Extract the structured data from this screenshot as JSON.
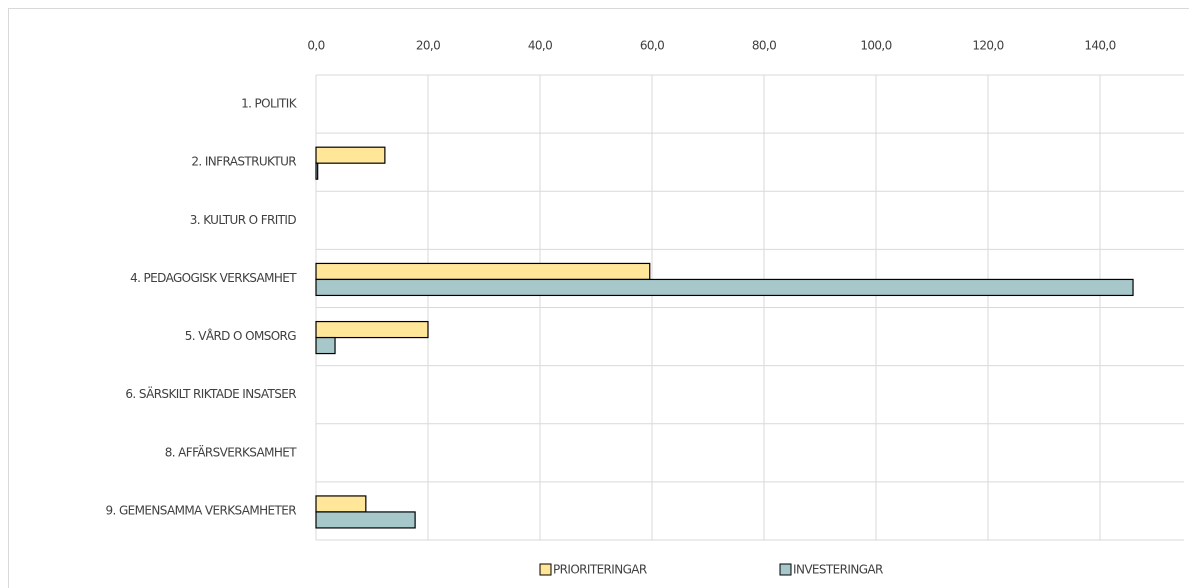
{
  "chart_data": {
    "type": "bar",
    "orientation": "horizontal",
    "categories": [
      "1. POLITIK",
      "2. INFRASTRUKTUR",
      "3. KULTUR O FRITID",
      "4. PEDAGOGISK VERKSAMHET",
      "5. VÅRD O OMSORG",
      "6. SÄRSKILT RIKTADE INSATSER",
      "8. AFFÄRSVERKSAMHET",
      "9. GEMENSAMMA VERKSAMHETER"
    ],
    "series": [
      {
        "name": "PRIORITERINGAR",
        "color": "#ffe699",
        "values": [
          0,
          12.3,
          0,
          59.6,
          20.0,
          0,
          0,
          8.9
        ]
      },
      {
        "name": "INVESTERINGAR",
        "color": "#a7c8cb",
        "values": [
          0,
          0.3,
          0,
          145.9,
          3.4,
          0,
          0,
          17.7
        ]
      }
    ],
    "xlim": [
      0,
      155
    ],
    "xticks": [
      {
        "value": 0,
        "label": "0,0"
      },
      {
        "value": 20,
        "label": "20,0"
      },
      {
        "value": 40,
        "label": "40,0"
      },
      {
        "value": 60,
        "label": "60,0"
      },
      {
        "value": 80,
        "label": "80,0"
      },
      {
        "value": 100,
        "label": "100,0"
      },
      {
        "value": 120,
        "label": "120,0"
      },
      {
        "value": 140,
        "label": "140,0"
      }
    ],
    "grid": true,
    "legend": "bottom"
  }
}
